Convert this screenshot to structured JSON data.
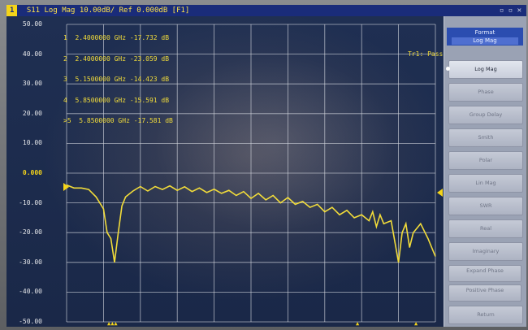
{
  "title_bar": {
    "channel": "1",
    "trace": "S11 Log Mag 10.00dB/ Ref 0.000dB [F1]"
  },
  "y_axis": {
    "labels": [
      "50.00",
      "40.00",
      "30.00",
      "20.00",
      "10.00",
      "0.000",
      "-10.00",
      "-20.00",
      "-30.00",
      "-40.00",
      "-50.00"
    ]
  },
  "markers": {
    "rows": [
      "1  2.4000000 GHz -17.732 dB",
      "2  2.4000000 GHz -23.059 dB",
      "3  5.1500000 GHz -14.423 dB",
      "4  5.8500000 GHz -15.591 dB",
      ">5  5.8500000 GHz -17.581 dB"
    ]
  },
  "status": {
    "trace_status": "Tr1: Pass"
  },
  "softkeys": {
    "header_title": "Format",
    "header_value": "Log Mag",
    "items": [
      {
        "label": "Log Mag"
      },
      {
        "label": "Phase"
      },
      {
        "label": "Group Delay"
      },
      {
        "label": "Smith"
      },
      {
        "label": "Polar"
      },
      {
        "label": "Lin Mag"
      },
      {
        "label": "SWR"
      },
      {
        "label": "Real"
      },
      {
        "label": "Imaginary"
      },
      {
        "label": "Expand Phase"
      },
      {
        "label": "Positive Phase"
      },
      {
        "label": "Return"
      }
    ]
  },
  "colors": {
    "trace": "#f2dc3a",
    "grid": "#d8dbe2",
    "screen_bg": "#1e2a44",
    "accent": "#2b4db0"
  },
  "chart_data": {
    "type": "line",
    "ylim": [
      -50,
      50
    ],
    "grid": true,
    "series": [
      {
        "x": [
          0,
          2,
          4,
          6,
          8,
          10,
          11,
          12,
          13,
          14,
          15,
          16,
          18,
          20,
          22,
          24,
          26,
          28,
          30,
          32,
          34,
          36,
          38,
          40,
          42,
          44,
          46,
          48,
          50,
          52,
          54,
          56,
          58,
          60,
          62,
          64,
          66,
          68,
          70,
          72,
          74,
          76,
          78,
          80,
          82,
          83,
          84,
          85,
          86,
          88,
          90,
          91,
          92,
          93,
          94,
          96,
          98,
          100
        ],
        "values": [
          -4,
          -5,
          -5,
          -5.5,
          -8,
          -12,
          -20,
          -22,
          -30,
          -20,
          -11,
          -8,
          -6,
          -4.5,
          -6,
          -4.5,
          -5.5,
          -4.3,
          -5.8,
          -4.6,
          -6.2,
          -5,
          -6.5,
          -5.4,
          -6.8,
          -5.8,
          -7.5,
          -6.2,
          -8.5,
          -6.8,
          -9,
          -7.5,
          -10,
          -8.2,
          -10.5,
          -9.5,
          -11.5,
          -10.5,
          -13,
          -11.5,
          -14,
          -12.5,
          -15,
          -14,
          -16,
          -13,
          -18,
          -14,
          -17,
          -16,
          -30,
          -20,
          -17,
          -25,
          -20,
          -17,
          -22,
          -28
        ]
      }
    ]
  }
}
